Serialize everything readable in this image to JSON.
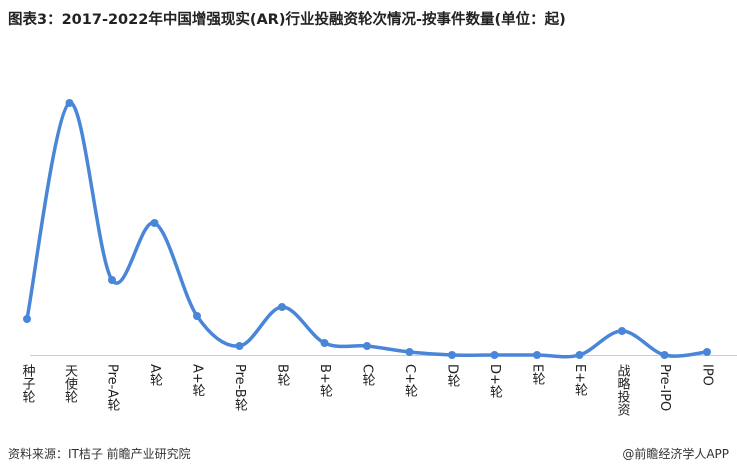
{
  "chart_data": {
    "type": "line",
    "title": "图表3：2017-2022年中国增强现实(AR)行业投融资轮次情况-按事件数量(单位：起)",
    "source": "资料来源：IT桔子 前瞻产业研究院",
    "brand": "@前瞻经济学人APP",
    "categories": [
      "种子轮",
      "天使轮",
      "Pre-A轮",
      "A轮",
      "A+轮",
      "Pre-B轮",
      "B轮",
      "B+轮",
      "C轮",
      "C+轮",
      "D轮",
      "D+轮",
      "E轮",
      "E+轮",
      "战略投资",
      "Pre-IPO",
      "IPO"
    ],
    "values": [
      12,
      84,
      25,
      44,
      13,
      3,
      16,
      4,
      3,
      1,
      0,
      0,
      0,
      0,
      8,
      0,
      1
    ],
    "color": "#4a86d8",
    "ylim": [
      0,
      90
    ]
  }
}
